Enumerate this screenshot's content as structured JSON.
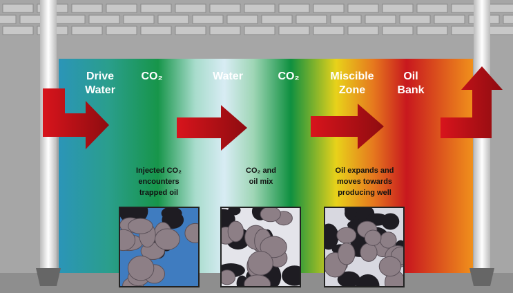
{
  "zones": [
    {
      "lines": [
        "Drive",
        "Water"
      ]
    },
    {
      "lines": [
        "CO₂"
      ]
    },
    {
      "lines": [
        "Water"
      ]
    },
    {
      "lines": [
        "CO₂"
      ]
    },
    {
      "lines": [
        "Miscible",
        "Zone"
      ]
    },
    {
      "lines": [
        "Oil",
        "Bank"
      ]
    }
  ],
  "captions": [
    {
      "lines": [
        "Injected CO₂",
        "encounters",
        "trapped oil"
      ]
    },
    {
      "lines": [
        "CO₂ and",
        "oil mix"
      ]
    },
    {
      "lines": [
        "Oil expands and",
        "moves towards",
        "producing well"
      ]
    }
  ]
}
